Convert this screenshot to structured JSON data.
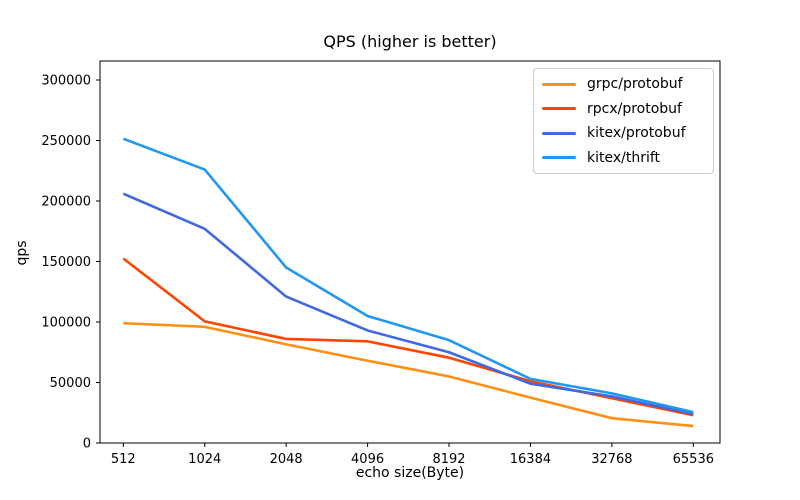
{
  "chart_data": {
    "type": "line",
    "title": "QPS (higher is better)",
    "xlabel": "echo size(Byte)",
    "ylabel": "qps",
    "categories": [
      "512",
      "1024",
      "2048",
      "4096",
      "8192",
      "16384",
      "32768",
      "65536"
    ],
    "y_ticks": [
      0,
      50000,
      100000,
      150000,
      200000,
      250000,
      300000
    ],
    "ylim": [
      0,
      315700
    ],
    "grid": false,
    "legend_position": "upper right",
    "series": [
      {
        "name": "grpc/protobuf",
        "color": "#ff9015",
        "values": [
          99000,
          96000,
          81500,
          68000,
          55000,
          37500,
          20500,
          14000
        ]
      },
      {
        "name": "rpcx/protobuf",
        "color": "#ff4500",
        "values": [
          152500,
          100500,
          86000,
          84000,
          70500,
          51000,
          37000,
          23000
        ]
      },
      {
        "name": "kitex/protobuf",
        "color": "#4169e1",
        "values": [
          206000,
          177000,
          121000,
          93000,
          75000,
          49000,
          38500,
          24000
        ]
      },
      {
        "name": "kitex/thrift",
        "color": "#2196f3",
        "values": [
          251500,
          226000,
          145000,
          105000,
          85000,
          53000,
          41000,
          25500
        ]
      }
    ]
  }
}
